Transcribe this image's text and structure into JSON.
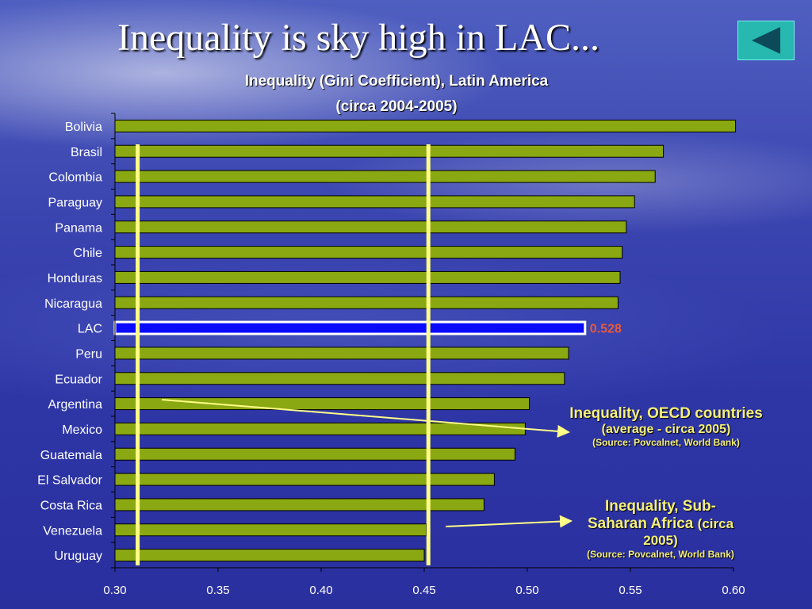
{
  "slide": {
    "title": "Inequality is sky high in LAC...",
    "back_button_icon": "left-triangle-icon"
  },
  "colors": {
    "bar_fill": "#8aa812",
    "highlight_fill": "#0a0aff",
    "reference_line": "#ffff88",
    "value_label": "#e85a3a",
    "annotation_text": "#f5f07a"
  },
  "chart_data": {
    "type": "bar",
    "orientation": "horizontal",
    "title": "Inequality (Gini Coefficient), Latin America",
    "subtitle": "(circa 2004-2005)",
    "categories": [
      "Bolivia",
      "Brasil",
      "Colombia",
      "Paraguay",
      "Panama",
      "Chile",
      "Honduras",
      "Nicaragua",
      "LAC",
      "Peru",
      "Ecuador",
      "Argentina",
      "Mexico",
      "Guatemala",
      "El Salvador",
      "Costa Rica",
      "Venezuela",
      "Uruguay"
    ],
    "values": [
      0.601,
      0.566,
      0.562,
      0.552,
      0.548,
      0.546,
      0.545,
      0.544,
      0.528,
      0.52,
      0.518,
      0.501,
      0.499,
      0.494,
      0.484,
      0.479,
      0.451,
      0.45
    ],
    "highlight": {
      "category": "LAC",
      "label": "0.528"
    },
    "xlim": [
      0.3,
      0.6
    ],
    "xticks": [
      "0.30",
      "0.35",
      "0.40",
      "0.45",
      "0.50",
      "0.55",
      "0.60"
    ],
    "xtick_values": [
      0.3,
      0.35,
      0.4,
      0.45,
      0.5,
      0.55,
      0.6
    ],
    "reference_lines": [
      {
        "value": 0.311,
        "name": "Inequality, OECD countries"
      },
      {
        "value": 0.452,
        "name": "Inequality, Sub-Saharan Africa"
      }
    ],
    "annotations": [
      {
        "title": "Inequality, OECD countries",
        "detail": "(average - circa 2005)",
        "source": "(Source: Povcalnet, World Bank)"
      },
      {
        "title": "Inequality, Sub-Saharan Africa",
        "title_line1": "Inequality, Sub-",
        "title_line2": "Saharan Africa",
        "detail": "(circa 2005)",
        "detail_part1": "(circa",
        "detail_part2": "2005)",
        "source": "(Source: Povcalnet, World Bank)"
      }
    ]
  }
}
